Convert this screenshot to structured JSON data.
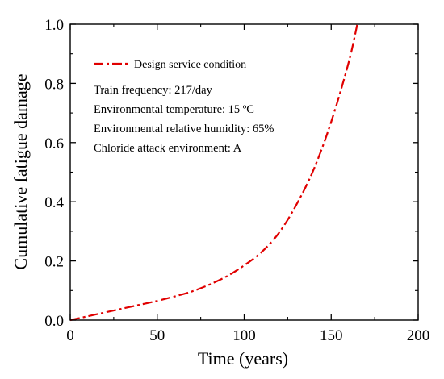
{
  "chart_data": {
    "type": "line",
    "title": "",
    "xlabel": "Time (years)",
    "ylabel": "Cumulative fatigue damage",
    "xlim": [
      0,
      200
    ],
    "ylim": [
      0,
      1.0
    ],
    "xticks": [
      "0",
      "50",
      "100",
      "150",
      "200"
    ],
    "yticks": [
      "0.0",
      "0.2",
      "0.4",
      "0.6",
      "0.8",
      "1.0"
    ],
    "grid": false,
    "legend_position": "top-left",
    "series": [
      {
        "name": "Design service condition",
        "color": "#e00000",
        "style": "dash-dot",
        "x": [
          0,
          10,
          20,
          30,
          40,
          50,
          60,
          70,
          80,
          90,
          100,
          110,
          120,
          130,
          140,
          150,
          160,
          165
        ],
        "y": [
          0,
          0.013,
          0.026,
          0.039,
          0.052,
          0.065,
          0.08,
          0.097,
          0.12,
          0.148,
          0.185,
          0.23,
          0.295,
          0.39,
          0.51,
          0.67,
          0.87,
          1.0
        ]
      }
    ],
    "annotations": [
      "Train frequency: 217/day",
      "Environmental temperature: 15 ºC",
      "Environmental relative humidity: 65%",
      "Chloride attack environment: A"
    ]
  }
}
